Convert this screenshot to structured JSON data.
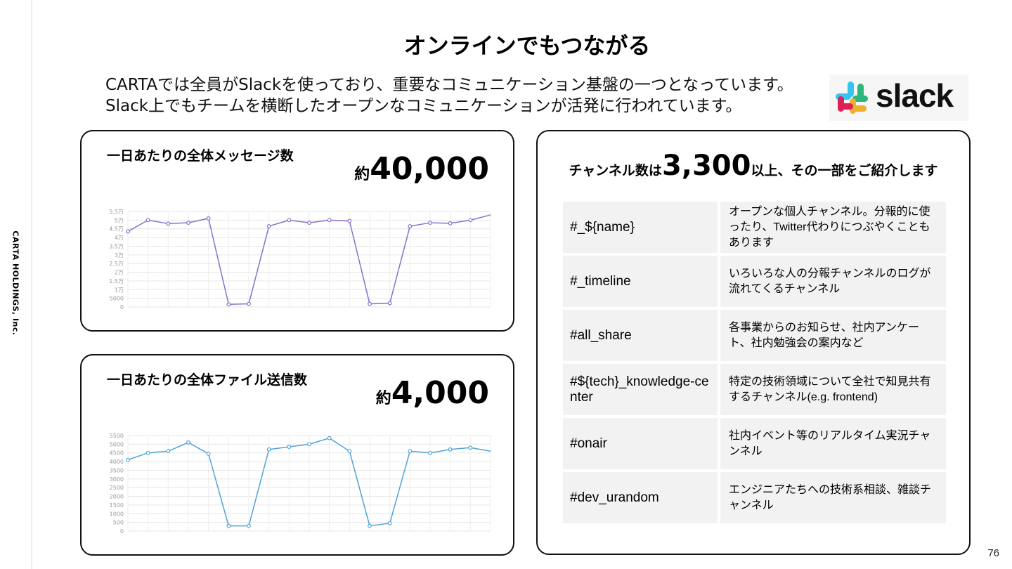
{
  "company": "CARTA HOLDINGS, Inc.",
  "title": "オンラインでもつながる",
  "intro": {
    "line1": "CARTAでは全員がSlackを使っており、重要なコミュニケーション基盤の一つとなっています。",
    "line2": "Slack上でもチームを横断したオープンなコミュニケーションが活発に行われています。"
  },
  "logo": {
    "text": "slack",
    "icon": "slack-hash-icon",
    "colors": [
      "#36C5F0",
      "#2EB67D",
      "#ECB22E",
      "#E01E5A"
    ]
  },
  "messages": {
    "label": "一日あたりの全体メッセージ数",
    "prefix": "約",
    "value": "40,000"
  },
  "files": {
    "label": "一日あたりの全体ファイル送信数",
    "prefix": "約",
    "value": "4,000"
  },
  "channels": {
    "head_pre": "チャンネル数は",
    "head_num": "3,300",
    "head_post": "以上、その一部をご紹介します",
    "rows": [
      {
        "name": "#_${name}",
        "desc": "オープンな個人チャンネル。分報的に使ったり、Twitter代わりにつぶやくこともあります"
      },
      {
        "name": "#_timeline",
        "desc": "いろいろな人の分報チャンネルのログが流れてくるチャンネル"
      },
      {
        "name": "#all_share",
        "desc": "各事業からのお知らせ、社内アンケート、社内勉強会の案内など"
      },
      {
        "name": "#${tech}_knowledge-center",
        "desc": "特定の技術領域について全社で知見共有するチャンネル(e.g. frontend)"
      },
      {
        "name": "#onair",
        "desc": "社内イベント等のリアルタイム実況チャンネル"
      },
      {
        "name": "#dev_urandom",
        "desc": "エンジニアたちへの技術系相談、雑談チャンネル"
      }
    ]
  },
  "page_number": "76",
  "chart_data": [
    {
      "type": "line",
      "color": "#8a6fc9",
      "ylim": [
        0,
        55000
      ],
      "yticks": [
        "0",
        "5000",
        "1万",
        "1.5万",
        "2万",
        "2.5万",
        "3万",
        "3.5万",
        "4万",
        "4.5万",
        "5万",
        "5.5万"
      ],
      "grid": true,
      "values": [
        43500,
        50000,
        48000,
        48500,
        51000,
        1500,
        1800,
        46500,
        50000,
        48500,
        50000,
        49500,
        1800,
        2200,
        46500,
        48500,
        48200,
        50000,
        53000
      ]
    },
    {
      "type": "line",
      "color": "#4fa3d6",
      "ylim": [
        0,
        5500
      ],
      "yticks": [
        "0",
        "500",
        "1000",
        "1500",
        "2000",
        "2500",
        "3000",
        "3500",
        "4000",
        "4500",
        "5000",
        "5500"
      ],
      "grid": true,
      "values": [
        4100,
        4500,
        4600,
        5100,
        4450,
        300,
        300,
        4700,
        4850,
        5000,
        5350,
        4600,
        300,
        450,
        4600,
        4500,
        4700,
        4800,
        4600
      ]
    }
  ]
}
